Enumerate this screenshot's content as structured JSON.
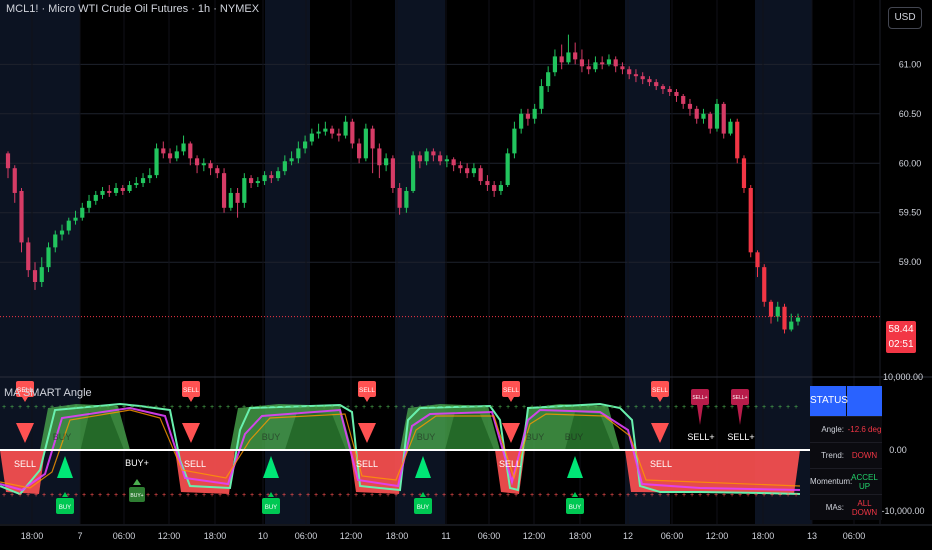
{
  "header": {
    "title": "MCL1! · Micro WTI Crude Oil Futures · 1h · NYMEX",
    "currency_button": "USD"
  },
  "indicator": {
    "title": "MA SMART Angle",
    "status": {
      "header": "STATUS",
      "rows": [
        {
          "key": "Angle:",
          "value": "-12.6 deg",
          "color": "#f23645"
        },
        {
          "key": "Trend:",
          "value": "DOWN",
          "color": "#f23645"
        },
        {
          "key": "Momentum:",
          "value": "ACCEL UP",
          "color": "#22d36b"
        },
        {
          "key": "MAs:",
          "value": "ALL DOWN",
          "color": "#f23645"
        }
      ]
    },
    "y_ticks": [
      "10,000.00",
      "0.00",
      "-10,000.00"
    ],
    "signals": {
      "sell_flags": [
        {
          "text": "SELL",
          "x": 25
        },
        {
          "text": "SELL",
          "x": 191
        },
        {
          "text": "SELL",
          "x": 367
        },
        {
          "text": "SELL",
          "x": 511
        },
        {
          "text": "SELL",
          "x": 660
        }
      ],
      "sell_plus_flags": [
        {
          "text": "SELL+",
          "x": 700
        },
        {
          "text": "SELL+",
          "x": 740
        }
      ],
      "buy_flags": [
        {
          "text": "BUY",
          "x": 65
        },
        {
          "text": "BUY+",
          "x": 137
        },
        {
          "text": "BUY",
          "x": 271
        },
        {
          "text": "BUY",
          "x": 423
        },
        {
          "text": "BUY",
          "x": 575
        }
      ],
      "buy_labels": [
        {
          "text": "BUY",
          "x": 62
        },
        {
          "text": "BUY",
          "x": 271
        },
        {
          "text": "BUY",
          "x": 426
        },
        {
          "text": "BUY",
          "x": 535
        },
        {
          "text": "BUY",
          "x": 574
        }
      ],
      "sell_labels": [
        {
          "text": "SELL",
          "x": 25
        },
        {
          "text": "SELL",
          "x": 195
        },
        {
          "text": "SELL",
          "x": 367
        },
        {
          "text": "SELL",
          "x": 510
        },
        {
          "text": "SELL",
          "x": 661
        }
      ],
      "buy_plus_label": {
        "text": "BUY+",
        "x": 137
      },
      "sell_plus_labels": [
        {
          "text": "SELL+",
          "x": 701
        },
        {
          "text": "SELL+",
          "x": 741
        }
      ]
    }
  },
  "last_price": {
    "price": "58.44",
    "countdown": "02:51"
  },
  "colors": {
    "up": "#26a69a",
    "up_bright": "#22d36b",
    "down": "#f23645",
    "down_deep": "#c2185b",
    "accent": "#2962ff"
  },
  "chart_data": {
    "type": "candlestick",
    "title": "MCL1! · Micro WTI Crude Oil Futures · 1h · NYMEX",
    "y_ticks": [
      61.0,
      60.5,
      60.0,
      59.5,
      59.0
    ],
    "y_tick_labels": [
      "61.00",
      "60.50",
      "60.00",
      "59.50",
      "59.00"
    ],
    "ylim": [
      57.85,
      61.65
    ],
    "x_tick_labels": [
      {
        "label": "18:00",
        "x": 32
      },
      {
        "label": "7",
        "x": 80
      },
      {
        "label": "06:00",
        "x": 124
      },
      {
        "label": "12:00",
        "x": 169
      },
      {
        "label": "18:00",
        "x": 215
      },
      {
        "label": "10",
        "x": 263
      },
      {
        "label": "06:00",
        "x": 306
      },
      {
        "label": "12:00",
        "x": 351
      },
      {
        "label": "18:00",
        "x": 397
      },
      {
        "label": "11",
        "x": 446
      },
      {
        "label": "06:00",
        "x": 489
      },
      {
        "label": "12:00",
        "x": 534
      },
      {
        "label": "18:00",
        "x": 580
      },
      {
        "label": "12",
        "x": 628
      },
      {
        "label": "06:00",
        "x": 672
      },
      {
        "label": "12:00",
        "x": 717
      },
      {
        "label": "18:00",
        "x": 763
      },
      {
        "label": "13",
        "x": 812
      },
      {
        "label": "06:00",
        "x": 854
      }
    ],
    "grid": true,
    "candles": [
      [
        60.1,
        59.95,
        60.12,
        59.85
      ],
      [
        59.95,
        59.7,
        59.98,
        59.6
      ],
      [
        59.72,
        59.2,
        59.75,
        59.1
      ],
      [
        59.2,
        58.92,
        59.25,
        58.85
      ],
      [
        58.92,
        58.8,
        59.0,
        58.72
      ],
      [
        58.8,
        58.95,
        59.05,
        58.75
      ],
      [
        58.95,
        59.15,
        59.2,
        58.9
      ],
      [
        59.15,
        59.28,
        59.32,
        59.1
      ],
      [
        59.28,
        59.32,
        59.38,
        59.22
      ],
      [
        59.32,
        59.42,
        59.45,
        59.28
      ],
      [
        59.42,
        59.45,
        59.52,
        59.38
      ],
      [
        59.45,
        59.55,
        59.6,
        59.42
      ],
      [
        59.55,
        59.62,
        59.68,
        59.5
      ],
      [
        59.62,
        59.68,
        59.72,
        59.58
      ],
      [
        59.68,
        59.72,
        59.76,
        59.64
      ],
      [
        59.72,
        59.7,
        59.78,
        59.66
      ],
      [
        59.7,
        59.75,
        59.8,
        59.67
      ],
      [
        59.75,
        59.72,
        59.78,
        59.68
      ],
      [
        59.72,
        59.78,
        59.82,
        59.7
      ],
      [
        59.78,
        59.8,
        59.86,
        59.75
      ],
      [
        59.8,
        59.85,
        59.9,
        59.76
      ],
      [
        59.85,
        59.88,
        59.95,
        59.8
      ],
      [
        59.88,
        60.15,
        60.2,
        59.85
      ],
      [
        60.15,
        60.1,
        60.22,
        60.05
      ],
      [
        60.1,
        60.05,
        60.15,
        60.0
      ],
      [
        60.05,
        60.12,
        60.18,
        60.02
      ],
      [
        60.12,
        60.2,
        60.28,
        60.08
      ],
      [
        60.2,
        60.05,
        60.22,
        59.98
      ],
      [
        60.05,
        59.98,
        60.08,
        59.9
      ],
      [
        59.98,
        60.0,
        60.05,
        59.92
      ],
      [
        60.0,
        59.95,
        60.03,
        59.88
      ],
      [
        59.95,
        59.9,
        59.98,
        59.85
      ],
      [
        59.9,
        59.55,
        59.95,
        59.5
      ],
      [
        59.55,
        59.7,
        59.75,
        59.52
      ],
      [
        59.7,
        59.6,
        59.75,
        59.45
      ],
      [
        59.6,
        59.85,
        59.9,
        59.55
      ],
      [
        59.85,
        59.8,
        59.88,
        59.75
      ],
      [
        59.8,
        59.82,
        59.86,
        59.76
      ],
      [
        59.82,
        59.88,
        59.92,
        59.78
      ],
      [
        59.88,
        59.85,
        59.92,
        59.8
      ],
      [
        59.85,
        59.92,
        59.96,
        59.82
      ],
      [
        59.92,
        60.02,
        60.08,
        59.88
      ],
      [
        60.02,
        60.05,
        60.12,
        59.98
      ],
      [
        60.05,
        60.15,
        60.22,
        60.0
      ],
      [
        60.15,
        60.22,
        60.28,
        60.1
      ],
      [
        60.22,
        60.3,
        60.35,
        60.18
      ],
      [
        60.3,
        60.32,
        60.4,
        60.25
      ],
      [
        60.32,
        60.35,
        60.42,
        60.28
      ],
      [
        60.35,
        60.3,
        60.38,
        60.25
      ],
      [
        60.3,
        60.28,
        60.35,
        60.22
      ],
      [
        60.28,
        60.42,
        60.48,
        60.25
      ],
      [
        60.42,
        60.2,
        60.45,
        60.15
      ],
      [
        60.2,
        60.05,
        60.25,
        60.0
      ],
      [
        60.05,
        60.35,
        60.4,
        60.02
      ],
      [
        60.35,
        60.15,
        60.38,
        59.9
      ],
      [
        60.15,
        59.98,
        60.2,
        59.85
      ],
      [
        59.98,
        60.05,
        60.1,
        59.92
      ],
      [
        60.05,
        59.75,
        60.08,
        59.7
      ],
      [
        59.75,
        59.55,
        59.8,
        59.48
      ],
      [
        59.55,
        59.72,
        59.76,
        59.5
      ],
      [
        59.72,
        60.08,
        60.12,
        59.7
      ],
      [
        60.08,
        60.02,
        60.12,
        59.95
      ],
      [
        60.02,
        60.12,
        60.15,
        59.98
      ],
      [
        60.12,
        60.08,
        60.15,
        60.02
      ],
      [
        60.08,
        60.02,
        60.12,
        59.98
      ],
      [
        60.02,
        60.04,
        60.08,
        59.96
      ],
      [
        60.04,
        59.98,
        60.06,
        59.92
      ],
      [
        59.98,
        59.95,
        60.02,
        59.9
      ],
      [
        59.95,
        59.9,
        60.0,
        59.85
      ],
      [
        59.9,
        59.95,
        60.0,
        59.86
      ],
      [
        59.95,
        59.82,
        59.98,
        59.78
      ],
      [
        59.82,
        59.78,
        59.88,
        59.72
      ],
      [
        59.78,
        59.72,
        59.82,
        59.66
      ],
      [
        59.72,
        59.78,
        59.82,
        59.68
      ],
      [
        59.78,
        60.1,
        60.15,
        59.76
      ],
      [
        60.1,
        60.35,
        60.42,
        60.05
      ],
      [
        60.35,
        60.5,
        60.55,
        60.3
      ],
      [
        60.5,
        60.45,
        60.55,
        60.38
      ],
      [
        60.45,
        60.55,
        60.6,
        60.4
      ],
      [
        60.55,
        60.78,
        60.85,
        60.5
      ],
      [
        60.78,
        60.92,
        60.98,
        60.72
      ],
      [
        60.92,
        61.08,
        61.15,
        60.88
      ],
      [
        61.08,
        61.02,
        61.2,
        60.95
      ],
      [
        61.02,
        61.12,
        61.3,
        61.0
      ],
      [
        61.12,
        61.05,
        61.22,
        61.0
      ],
      [
        61.05,
        60.98,
        61.15,
        60.92
      ],
      [
        60.98,
        60.95,
        61.05,
        60.9
      ],
      [
        60.95,
        61.02,
        61.08,
        60.92
      ],
      [
        61.02,
        61.0,
        61.08,
        60.95
      ],
      [
        61.0,
        61.05,
        61.1,
        60.98
      ],
      [
        61.05,
        60.98,
        61.08,
        60.92
      ],
      [
        60.98,
        60.95,
        61.02,
        60.9
      ],
      [
        60.95,
        60.9,
        60.98,
        60.85
      ],
      [
        60.9,
        60.88,
        60.95,
        60.82
      ],
      [
        60.88,
        60.85,
        60.92,
        60.8
      ],
      [
        60.85,
        60.82,
        60.88,
        60.78
      ],
      [
        60.82,
        60.78,
        60.85,
        60.74
      ],
      [
        60.78,
        60.75,
        60.8,
        60.7
      ],
      [
        60.75,
        60.72,
        60.78,
        60.68
      ],
      [
        60.72,
        60.68,
        60.75,
        60.62
      ],
      [
        60.68,
        60.6,
        60.7,
        60.55
      ],
      [
        60.6,
        60.55,
        60.65,
        60.48
      ],
      [
        60.55,
        60.45,
        60.58,
        60.4
      ],
      [
        60.45,
        60.5,
        60.55,
        60.4
      ],
      [
        60.5,
        60.35,
        60.52,
        60.3
      ],
      [
        60.35,
        60.6,
        60.65,
        60.32
      ],
      [
        60.6,
        60.3,
        60.62,
        60.25
      ],
      [
        60.3,
        60.42,
        60.45,
        60.28
      ],
      [
        60.42,
        60.05,
        60.45,
        60.0
      ],
      [
        60.05,
        59.75,
        60.08,
        59.7
      ],
      [
        59.75,
        59.1,
        59.78,
        59.05
      ],
      [
        59.1,
        58.95,
        59.12,
        58.85
      ],
      [
        58.95,
        58.6,
        58.98,
        58.55
      ],
      [
        58.6,
        58.45,
        58.62,
        58.38
      ],
      [
        58.45,
        58.55,
        58.6,
        58.4
      ],
      [
        58.55,
        58.32,
        58.58,
        58.28
      ],
      [
        58.32,
        58.4,
        58.48,
        58.3
      ],
      [
        58.4,
        58.44,
        58.48,
        58.36
      ]
    ]
  }
}
